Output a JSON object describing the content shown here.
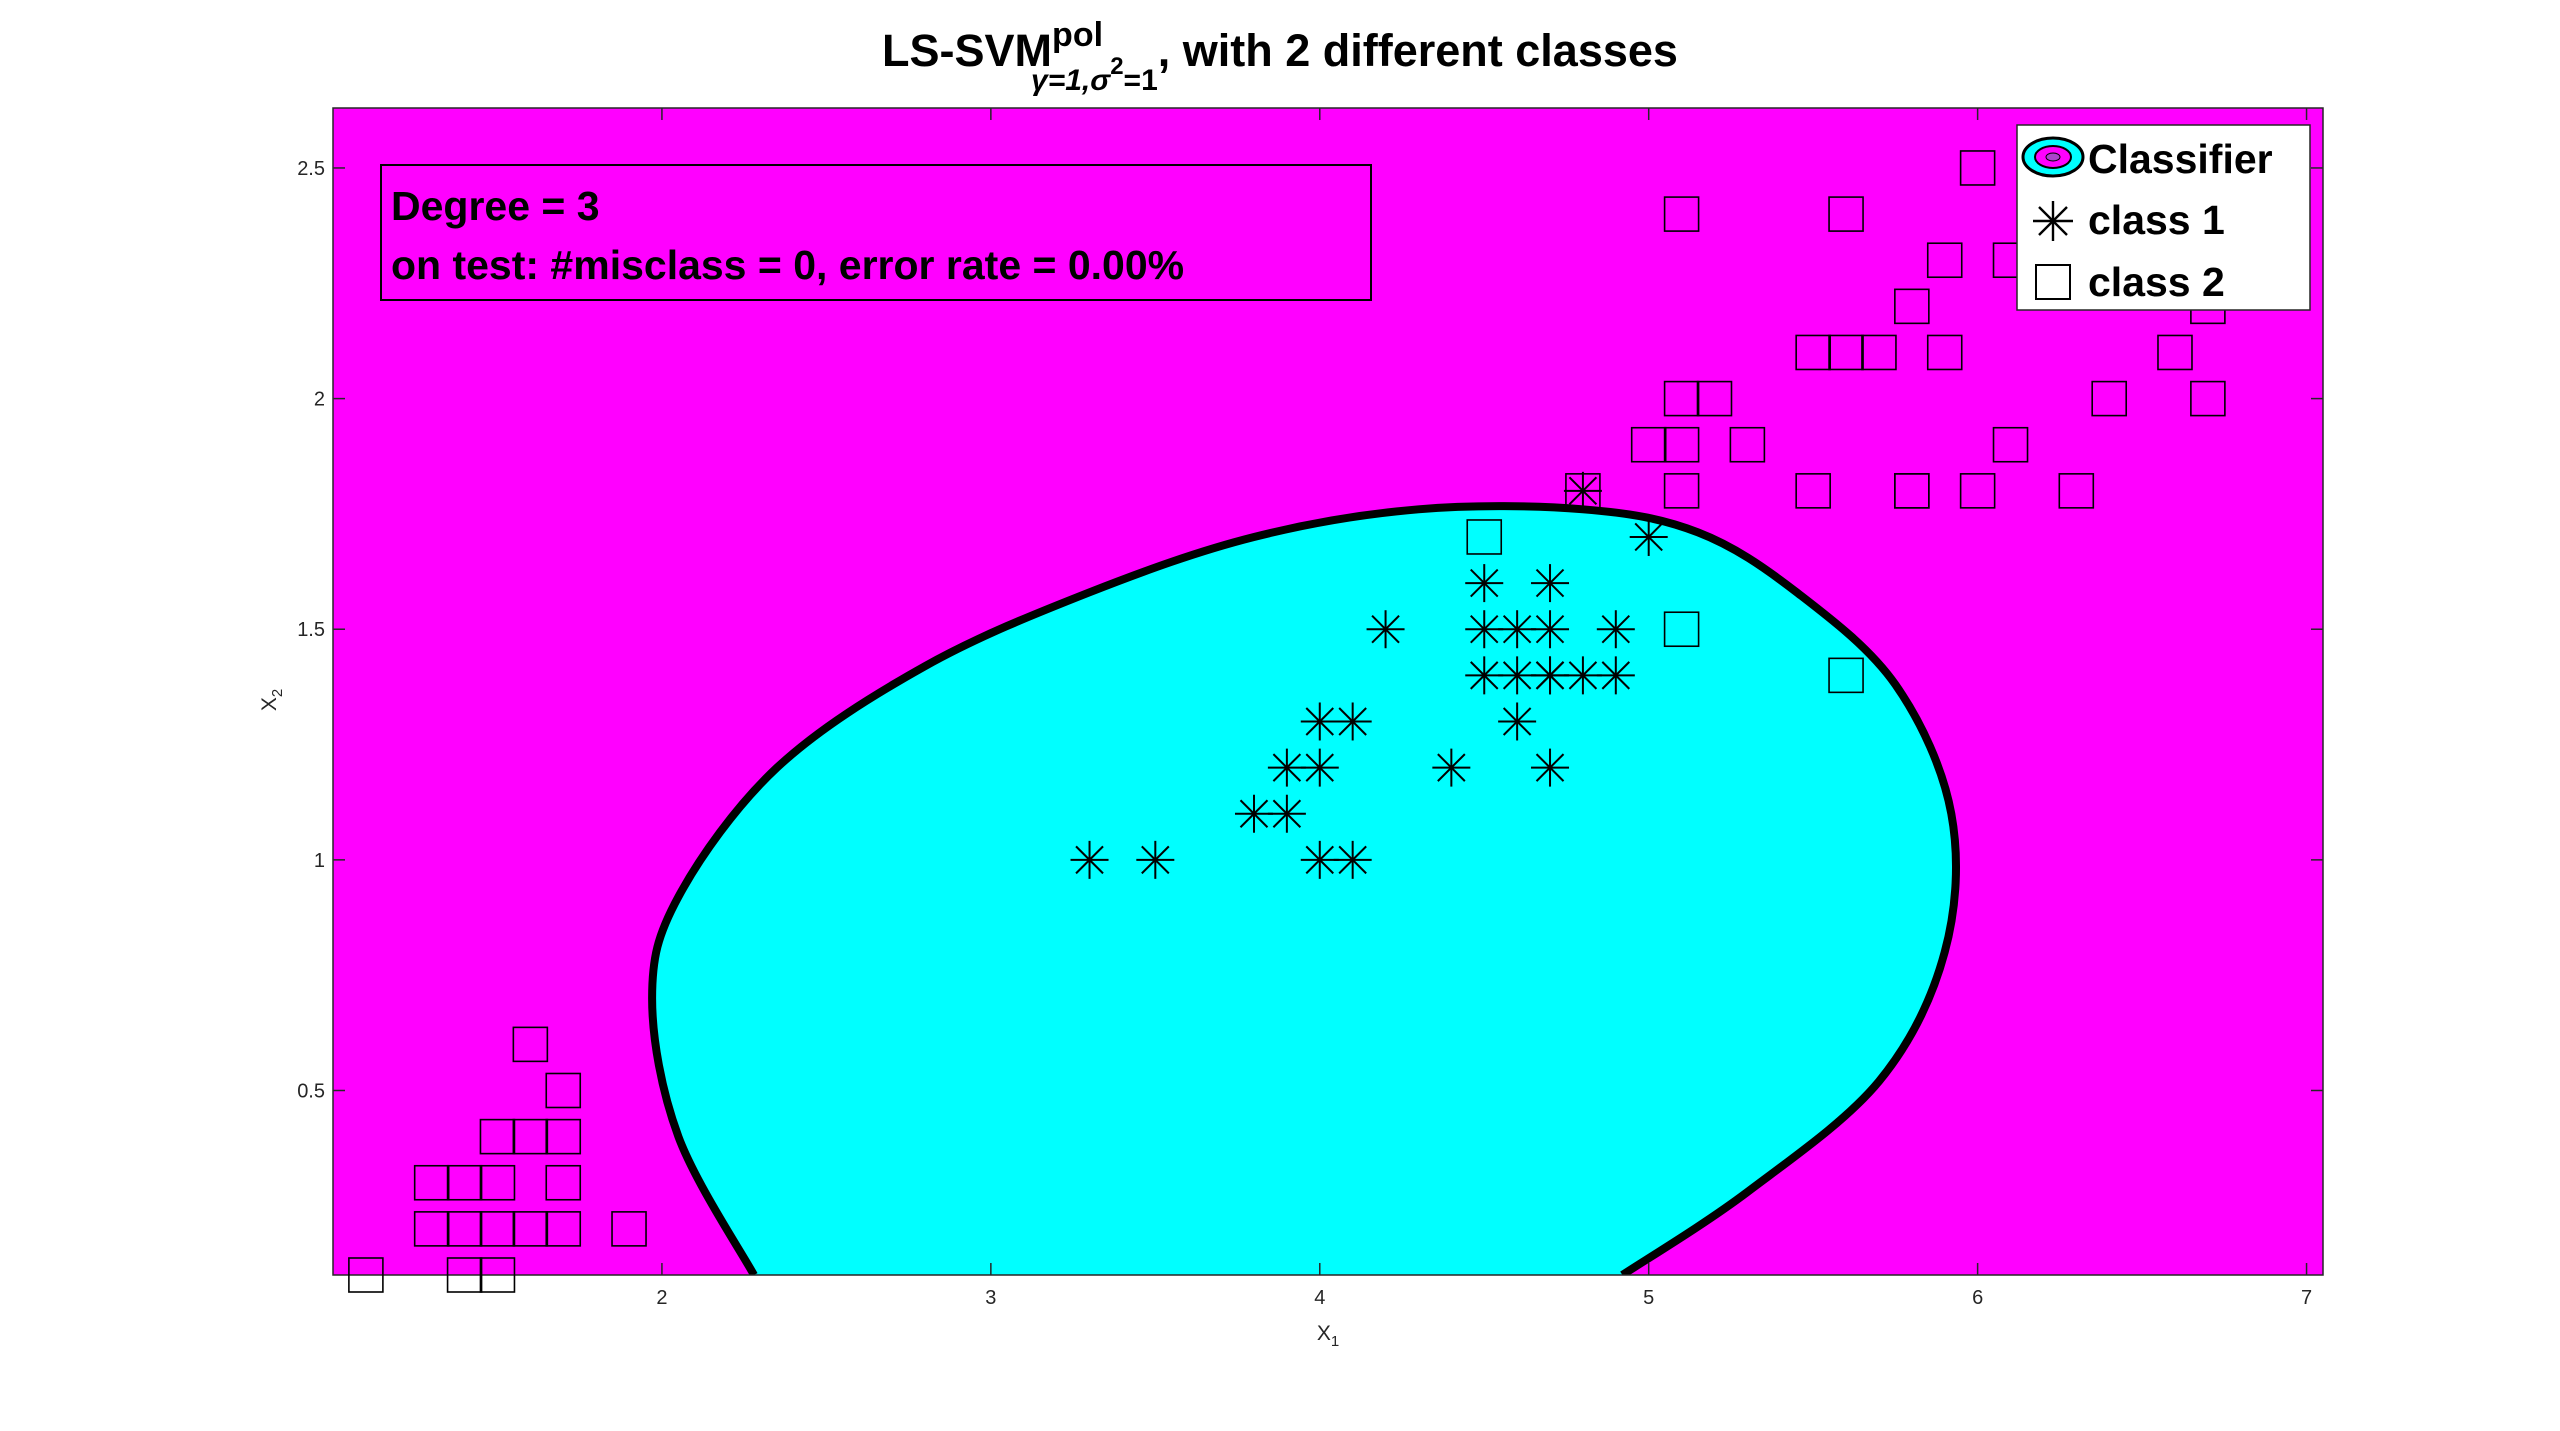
{
  "chart_data": {
    "type": "scatter",
    "title_main": "LS-SVM",
    "title_sup": "pol",
    "title_sub_gamma": "γ=1,",
    "title_sub_sigma": "σ",
    "title_sub_sigma_exp": "2",
    "title_sub_end": "=1",
    "title_rest": ", with 2 different classes",
    "xlabel": "X",
    "xlabel_sub": "1",
    "ylabel": "X",
    "ylabel_sub": "2",
    "xlim": [
      1,
      7.05
    ],
    "ylim": [
      0.1,
      2.63
    ],
    "xticks": [
      2,
      3,
      4,
      5,
      6,
      7
    ],
    "yticks": [
      0.5,
      1,
      1.5,
      2,
      2.5
    ],
    "xtick_labels": [
      "2",
      "3",
      "4",
      "5",
      "6",
      "7"
    ],
    "ytick_labels": [
      "0.5",
      "1",
      "1.5",
      "2",
      "2.5"
    ],
    "info_line1": "Degree = 3",
    "info_line2": "on test: #misclass = 0, error rate = 0.00%",
    "colors": {
      "class_negative_region": "#ff00ff",
      "class_positive_region": "#00ffff",
      "boundary": "#000000",
      "markers": "#000000"
    },
    "legend_position": "top-right",
    "legend": [
      {
        "label": "Classifier",
        "icon": "classifier-contour-icon"
      },
      {
        "label": "class 1",
        "icon": "asterisk-marker-icon"
      },
      {
        "label": "class 2",
        "icon": "square-marker-icon"
      }
    ],
    "decision_boundary": [
      [
        2.28,
        0.1
      ],
      [
        2.05,
        0.4
      ],
      [
        1.97,
        0.7
      ],
      [
        2.05,
        0.92
      ],
      [
        2.35,
        1.2
      ],
      [
        2.8,
        1.42
      ],
      [
        3.3,
        1.58
      ],
      [
        3.8,
        1.7
      ],
      [
        4.3,
        1.76
      ],
      [
        4.8,
        1.76
      ],
      [
        5.15,
        1.71
      ],
      [
        5.45,
        1.58
      ],
      [
        5.75,
        1.38
      ],
      [
        5.92,
        1.1
      ],
      [
        5.9,
        0.8
      ],
      [
        5.7,
        0.52
      ],
      [
        5.3,
        0.28
      ],
      [
        4.92,
        0.1
      ]
    ],
    "series": [
      {
        "name": "class 1",
        "marker": "asterisk",
        "x": [
          3.3,
          3.5,
          3.8,
          3.9,
          3.9,
          4.0,
          4.0,
          4.0,
          4.1,
          4.1,
          4.2,
          4.4,
          4.5,
          4.5,
          4.5,
          4.6,
          4.6,
          4.6,
          4.7,
          4.7,
          4.7,
          4.7,
          4.7,
          4.8,
          4.8,
          4.9,
          4.9,
          5.0
        ],
        "y": [
          1.0,
          1.0,
          1.1,
          1.1,
          1.2,
          1.0,
          1.2,
          1.3,
          1.0,
          1.3,
          1.5,
          1.2,
          1.4,
          1.5,
          1.6,
          1.3,
          1.4,
          1.5,
          1.2,
          1.4,
          1.5,
          1.6,
          1.4,
          1.4,
          1.8,
          1.4,
          1.5,
          1.7
        ]
      },
      {
        "name": "class 2",
        "marker": "square",
        "x": [
          1.1,
          1.4,
          1.5,
          1.3,
          1.4,
          1.5,
          1.6,
          1.7,
          1.3,
          1.4,
          1.5,
          1.7,
          1.5,
          1.6,
          1.7,
          1.7,
          1.6,
          1.9,
          4.5,
          4.8,
          5.1,
          5.6,
          5.1,
          5.6,
          5.0,
          5.1,
          5.2,
          5.1,
          5.3,
          5.5,
          5.6,
          5.7,
          5.9,
          5.8,
          6.0,
          6.1,
          6.3,
          6.4,
          6.7,
          6.6,
          5.8,
          5.9,
          6.1,
          6.0,
          6.7,
          5.5,
          5.1,
          5.8
        ],
        "y": [
          0.1,
          0.1,
          0.1,
          0.2,
          0.2,
          0.2,
          0.2,
          0.2,
          0.3,
          0.3,
          0.3,
          0.3,
          0.4,
          0.4,
          0.4,
          0.5,
          0.6,
          0.2,
          1.7,
          1.8,
          1.5,
          1.4,
          1.9,
          2.4,
          1.9,
          2.0,
          2.0,
          2.4,
          1.9,
          2.1,
          2.1,
          2.1,
          2.1,
          2.2,
          2.5,
          2.3,
          1.8,
          2.0,
          2.0,
          2.1,
          1.8,
          2.3,
          1.9,
          1.8,
          2.2,
          1.8,
          1.8,
          1.8
        ]
      }
    ]
  }
}
